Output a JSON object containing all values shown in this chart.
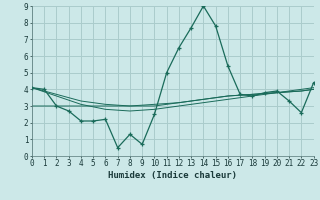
{
  "xlabel": "Humidex (Indice chaleur)",
  "bg_color": "#cce8e8",
  "grid_color": "#aacccc",
  "line_color": "#1a6b5a",
  "x_data": [
    0,
    1,
    2,
    3,
    4,
    5,
    6,
    7,
    8,
    9,
    10,
    11,
    12,
    13,
    14,
    15,
    16,
    17,
    18,
    19,
    20,
    21,
    22,
    23
  ],
  "y_main": [
    4.1,
    4.0,
    3.0,
    2.7,
    2.1,
    2.1,
    2.2,
    0.5,
    1.3,
    0.7,
    2.5,
    5.0,
    6.5,
    7.7,
    9.0,
    7.8,
    5.4,
    3.7,
    3.6,
    3.8,
    3.9,
    3.3,
    2.6,
    4.4
  ],
  "y_trend1": [
    4.1,
    3.9,
    3.7,
    3.5,
    3.3,
    3.2,
    3.1,
    3.05,
    3.0,
    3.05,
    3.1,
    3.15,
    3.2,
    3.3,
    3.4,
    3.5,
    3.6,
    3.65,
    3.7,
    3.75,
    3.8,
    3.85,
    3.9,
    4.0
  ],
  "y_trend2": [
    3.0,
    3.0,
    3.0,
    3.0,
    3.0,
    3.0,
    3.0,
    3.0,
    3.0,
    3.0,
    3.0,
    3.1,
    3.2,
    3.3,
    3.4,
    3.5,
    3.6,
    3.65,
    3.7,
    3.75,
    3.8,
    3.85,
    3.9,
    4.0
  ],
  "y_trend3": [
    4.1,
    3.85,
    3.6,
    3.35,
    3.1,
    2.95,
    2.8,
    2.75,
    2.7,
    2.75,
    2.8,
    2.9,
    3.0,
    3.1,
    3.2,
    3.3,
    3.4,
    3.5,
    3.6,
    3.7,
    3.8,
    3.9,
    4.0,
    4.1
  ],
  "xlim": [
    0,
    23
  ],
  "ylim": [
    0,
    9
  ],
  "xticks": [
    0,
    1,
    2,
    3,
    4,
    5,
    6,
    7,
    8,
    9,
    10,
    11,
    12,
    13,
    14,
    15,
    16,
    17,
    18,
    19,
    20,
    21,
    22,
    23
  ],
  "yticks": [
    0,
    1,
    2,
    3,
    4,
    5,
    6,
    7,
    8,
    9
  ],
  "tick_fontsize": 5.5,
  "label_fontsize": 6.5
}
